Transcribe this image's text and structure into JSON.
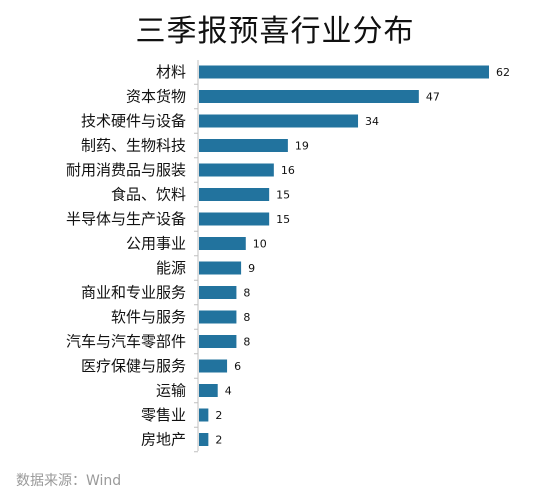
{
  "chart_data": {
    "type": "bar",
    "orientation": "horizontal",
    "title": "三季报预喜行业分布",
    "categories": [
      "材料",
      "资本货物",
      "技术硬件与设备",
      "制药、生物科技",
      "耐用消费品与服装",
      "食品、饮料",
      "半导体与生产设备",
      "公用事业",
      "能源",
      "商业和专业服务",
      "软件与服务",
      "汽车与汽车零部件",
      "医疗保健与服务",
      "运输",
      "零售业",
      "房地产"
    ],
    "values": [
      62,
      47,
      34,
      19,
      16,
      15,
      15,
      10,
      9,
      8,
      8,
      8,
      6,
      4,
      2,
      2
    ],
    "xlim": [
      0,
      66
    ],
    "grid": false,
    "bar_color": "#22739e",
    "data_labels": true
  },
  "source": "数据来源：Wind"
}
